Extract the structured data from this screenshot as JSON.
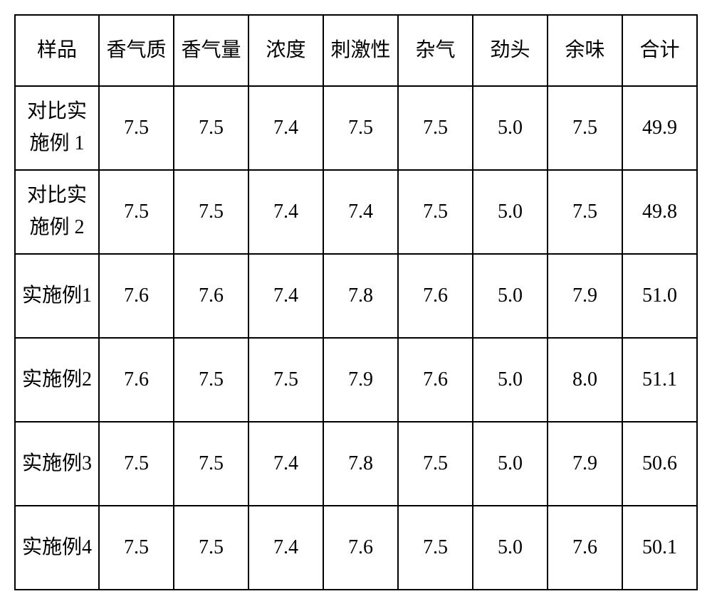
{
  "table": {
    "columns": [
      "样品",
      "香气质",
      "香气量",
      "浓度",
      "刺激性",
      "杂气",
      "劲头",
      "余味",
      "合计"
    ],
    "rows": [
      {
        "sample": "对比实施例 1",
        "values": [
          "7.5",
          "7.5",
          "7.4",
          "7.5",
          "7.5",
          "5.0",
          "7.5",
          "49.9"
        ]
      },
      {
        "sample": "对比实施例 2",
        "values": [
          "7.5",
          "7.5",
          "7.4",
          "7.4",
          "7.5",
          "5.0",
          "7.5",
          "49.8"
        ]
      },
      {
        "sample": "实施例1",
        "values": [
          "7.6",
          "7.6",
          "7.4",
          "7.8",
          "7.6",
          "5.0",
          "7.9",
          "51.0"
        ]
      },
      {
        "sample": "实施例2",
        "values": [
          "7.6",
          "7.5",
          "7.5",
          "7.9",
          "7.6",
          "5.0",
          "8.0",
          "51.1"
        ]
      },
      {
        "sample": "实施例3",
        "values": [
          "7.5",
          "7.5",
          "7.4",
          "7.8",
          "7.5",
          "5.0",
          "7.9",
          "50.6"
        ]
      },
      {
        "sample": "实施例4",
        "values": [
          "7.5",
          "7.5",
          "7.4",
          "7.6",
          "7.5",
          "5.0",
          "7.6",
          "50.1"
        ]
      }
    ],
    "border_color": "#000000",
    "background_color": "#ffffff",
    "font_size": 28,
    "cell_padding": 12
  }
}
